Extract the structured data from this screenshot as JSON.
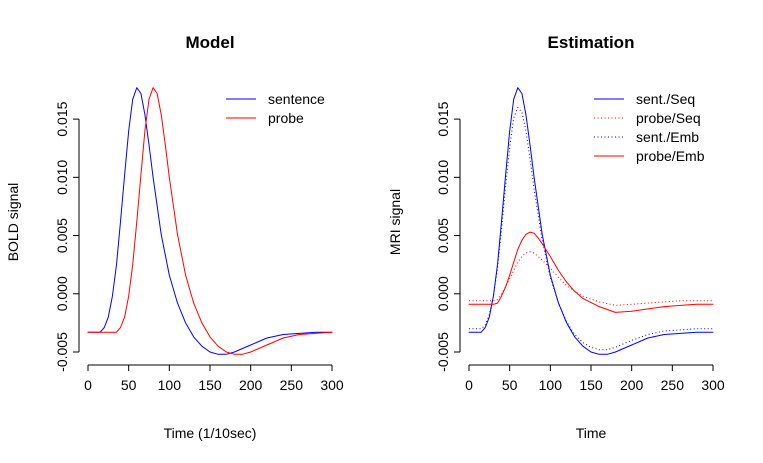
{
  "chart_data": [
    {
      "type": "line",
      "title": "Model",
      "xlabel": "Time (1/10sec)",
      "ylabel": "BOLD signal",
      "xlim": [
        0,
        300
      ],
      "ylim": [
        -0.005,
        0.0175
      ],
      "xticks": [
        "0",
        "50",
        "100",
        "150",
        "200",
        "250",
        "300"
      ],
      "yticks": [
        "-0.005",
        "0.000",
        "0.005",
        "0.010",
        "0.015"
      ],
      "legend_position": "top-right",
      "series": [
        {
          "name": "sentence",
          "color": "#0000ff",
          "style": "solid",
          "x": [
            0,
            15,
            20,
            25,
            30,
            35,
            40,
            45,
            50,
            55,
            60,
            65,
            70,
            75,
            80,
            90,
            100,
            110,
            120,
            130,
            140,
            150,
            160,
            170,
            180,
            190,
            200,
            220,
            240,
            260,
            280,
            300
          ],
          "y": [
            -0.0033,
            -0.0033,
            -0.0029,
            -0.002,
            -0.0002,
            0.0025,
            0.0062,
            0.0102,
            0.014,
            0.0167,
            0.0177,
            0.0172,
            0.0154,
            0.0128,
            0.01,
            0.0051,
            0.0016,
            -0.0008,
            -0.0025,
            -0.0037,
            -0.0045,
            -0.005,
            -0.0052,
            -0.0052,
            -0.005,
            -0.0047,
            -0.0044,
            -0.0038,
            -0.0035,
            -0.0034,
            -0.0033,
            -0.0033
          ]
        },
        {
          "name": "probe",
          "color": "#ff0000",
          "style": "solid",
          "x": [
            0,
            35,
            40,
            45,
            50,
            55,
            60,
            65,
            70,
            75,
            80,
            85,
            90,
            95,
            100,
            110,
            120,
            130,
            140,
            150,
            160,
            170,
            180,
            190,
            200,
            220,
            240,
            260,
            280,
            300
          ],
          "y": [
            -0.0033,
            -0.0033,
            -0.0029,
            -0.002,
            -0.0002,
            0.0025,
            0.0062,
            0.0102,
            0.014,
            0.0167,
            0.0177,
            0.0172,
            0.0154,
            0.0128,
            0.01,
            0.0051,
            0.0016,
            -0.0008,
            -0.0025,
            -0.0037,
            -0.0045,
            -0.005,
            -0.0052,
            -0.0052,
            -0.005,
            -0.0044,
            -0.0038,
            -0.0035,
            -0.0034,
            -0.0033
          ]
        }
      ]
    },
    {
      "type": "line",
      "title": "Estimation",
      "xlabel": "Time",
      "ylabel": "MRI signal",
      "xlim": [
        0,
        300
      ],
      "ylim": [
        -0.005,
        0.0175
      ],
      "xticks": [
        "0",
        "50",
        "100",
        "150",
        "200",
        "250",
        "300"
      ],
      "yticks": [
        "-0.005",
        "0.000",
        "0.005",
        "0.010",
        "0.015"
      ],
      "legend_position": "top-right",
      "series": [
        {
          "name": "sent./Seq",
          "color": "#0000ff",
          "style": "solid",
          "x": [
            0,
            15,
            20,
            25,
            30,
            35,
            40,
            45,
            50,
            55,
            60,
            65,
            70,
            75,
            80,
            90,
            100,
            110,
            120,
            130,
            140,
            150,
            160,
            170,
            180,
            190,
            200,
            220,
            240,
            260,
            280,
            300
          ],
          "y": [
            -0.0033,
            -0.0033,
            -0.0029,
            -0.002,
            -0.0002,
            0.0025,
            0.0062,
            0.0102,
            0.014,
            0.0167,
            0.0177,
            0.0172,
            0.0154,
            0.0128,
            0.01,
            0.0051,
            0.0016,
            -0.0008,
            -0.0025,
            -0.0037,
            -0.0045,
            -0.005,
            -0.0052,
            -0.0052,
            -0.005,
            -0.0047,
            -0.0044,
            -0.0038,
            -0.0035,
            -0.0034,
            -0.0033,
            -0.0033
          ]
        },
        {
          "name": "probe/Seq",
          "color": "#ff0000",
          "style": "dotted",
          "x": [
            0,
            30,
            35,
            40,
            45,
            50,
            55,
            60,
            65,
            70,
            75,
            80,
            85,
            90,
            100,
            110,
            120,
            130,
            140,
            160,
            180,
            200,
            220,
            240,
            260,
            280,
            300
          ],
          "y": [
            -0.0006,
            -0.0006,
            -0.0005,
            0.0,
            0.0006,
            0.0013,
            0.002,
            0.0027,
            0.0032,
            0.0035,
            0.0036,
            0.0035,
            0.0032,
            0.0029,
            0.0022,
            0.0014,
            0.0007,
            0.0002,
            -0.0002,
            -0.0007,
            -0.001,
            -0.0009,
            -0.0008,
            -0.0007,
            -0.0006,
            -0.0006,
            -0.0006
          ]
        },
        {
          "name": "sent./Emb",
          "color": "#0000ff",
          "style": "dotted",
          "x": [
            0,
            15,
            20,
            25,
            30,
            35,
            40,
            45,
            50,
            55,
            60,
            65,
            70,
            75,
            80,
            90,
            100,
            110,
            120,
            130,
            140,
            150,
            160,
            170,
            180,
            190,
            200,
            220,
            240,
            260,
            280,
            300
          ],
          "y": [
            -0.003,
            -0.003,
            -0.0027,
            -0.0018,
            -0.0002,
            0.0022,
            0.0055,
            0.0092,
            0.0126,
            0.0151,
            0.016,
            0.0156,
            0.014,
            0.0116,
            0.009,
            0.0046,
            0.0014,
            -0.0008,
            -0.0024,
            -0.0035,
            -0.0042,
            -0.0046,
            -0.0048,
            -0.0048,
            -0.0046,
            -0.0043,
            -0.004,
            -0.0035,
            -0.0032,
            -0.0031,
            -0.003,
            -0.003
          ]
        },
        {
          "name": "probe/Emb",
          "color": "#ff0000",
          "style": "solid",
          "x": [
            0,
            30,
            35,
            40,
            45,
            50,
            55,
            60,
            65,
            70,
            75,
            80,
            85,
            90,
            100,
            110,
            120,
            130,
            140,
            160,
            180,
            200,
            220,
            240,
            260,
            280,
            300
          ],
          "y": [
            -0.0009,
            -0.0009,
            -0.0008,
            -0.0002,
            0.0006,
            0.0016,
            0.0027,
            0.0038,
            0.0046,
            0.0051,
            0.0053,
            0.0052,
            0.0048,
            0.0043,
            0.0032,
            0.002,
            0.001,
            0.0002,
            -0.0004,
            -0.0011,
            -0.0016,
            -0.0015,
            -0.0013,
            -0.0011,
            -0.001,
            -0.0009,
            -0.0009
          ]
        }
      ]
    }
  ]
}
